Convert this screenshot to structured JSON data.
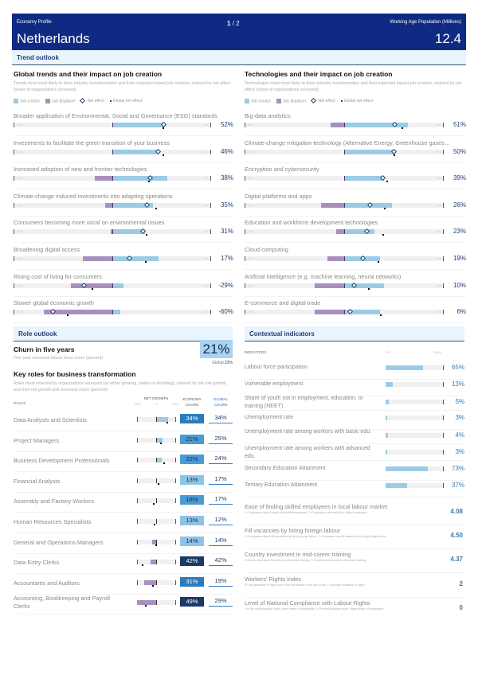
{
  "header": {
    "profile_label": "Economy Profile",
    "country": "Netherlands",
    "page_current": "1",
    "page_sep": "/ 2",
    "pop_label": "Working Age Population (Millions)",
    "pop_value": "12.4"
  },
  "colors": {
    "header": "#0f2a82",
    "creator": "#9ccbe6",
    "displacer": "#a98fbf",
    "net": "#1a3c6e"
  },
  "trend_outlook": {
    "band": "Trend outlook",
    "legend": {
      "creator": "Job creator",
      "displacer": "Job displacer",
      "net": "Net effect",
      "global": "Global net effect"
    },
    "scale": {
      "min": "-100%",
      "max": "100%"
    },
    "trends": {
      "title": "Global trends and their impact on job creation",
      "desc": "Trends most most likely to drive industry transformation and their expected impact job creation, ordered by net effect (share of organizations surveyed)",
      "items": [
        {
          "label": "Broader application of Environmental, Social and Governance (ESG) standards",
          "creator": 52,
          "displacer": 0,
          "net": 52,
          "global": 52,
          "net_label": "52%"
        },
        {
          "label": "Investments to facilitate the green transition of your business",
          "creator": 46,
          "displacer": 0,
          "net": 46,
          "global": 52,
          "net_label": "46%"
        },
        {
          "label": "Increased adoption of new and frontier technologies",
          "creator": 56,
          "displacer": -18,
          "net": 38,
          "global": 37,
          "net_label": "38%"
        },
        {
          "label": "Climate-change induced investments into adapting operations",
          "creator": 41,
          "displacer": -7,
          "net": 35,
          "global": 44,
          "net_label": "35%"
        },
        {
          "label": "Consumers becoming more vocal on environmental issues",
          "creator": 33,
          "displacer": -2,
          "net": 31,
          "global": 35,
          "net_label": "31%"
        },
        {
          "label": "Broadening digital access",
          "creator": 47,
          "displacer": -30,
          "net": 17,
          "global": 34,
          "net_label": "17%"
        },
        {
          "label": "Rising cost of living for consumers",
          "creator": 11,
          "displacer": -42,
          "net": -29,
          "global": -20,
          "net_label": "-29%"
        },
        {
          "label": "Slower global economic growth",
          "creator": 8,
          "displacer": -69,
          "net": -60,
          "global": -45,
          "net_label": "-60%"
        }
      ]
    },
    "tech": {
      "title": "Technologies and their impact on job creation",
      "desc": "Technologies most most likely to drive industry transformation and their expected impact job creation, ordered by net effect (share of organizations surveyed)",
      "items": [
        {
          "label": "Big-data analytics",
          "creator": 64,
          "displacer": -14,
          "net": 51,
          "global": 58,
          "net_label": "51%"
        },
        {
          "label": "Climate-change mitigation technology (Alternative Energy, Greenhouse gases…",
          "creator": 50,
          "displacer": 0,
          "net": 50,
          "global": 50,
          "net_label": "50%"
        },
        {
          "label": "Encryption and cybersecurity",
          "creator": 40,
          "displacer": 0,
          "net": 39,
          "global": 43,
          "net_label": "39%"
        },
        {
          "label": "Digital platforms and apps",
          "creator": 48,
          "displacer": -23,
          "net": 26,
          "global": 41,
          "net_label": "26%"
        },
        {
          "label": "Education and workforce development technologies",
          "creator": 30,
          "displacer": -8,
          "net": 23,
          "global": 39,
          "net_label": "23%"
        },
        {
          "label": "Cloud computing",
          "creator": 36,
          "displacer": -17,
          "net": 19,
          "global": 34,
          "net_label": "19%"
        },
        {
          "label": "Artificial intelligence (e.g. machine learning, neural networks)",
          "creator": 40,
          "displacer": -30,
          "net": 10,
          "global": 25,
          "net_label": "10%"
        },
        {
          "label": "E-commerce and digital trade",
          "creator": 36,
          "displacer": -30,
          "net": 6,
          "global": 37,
          "net_label": "6%"
        }
      ]
    }
  },
  "role_outlook": {
    "band": "Role outlook",
    "churn_title": "Churn in five years",
    "churn_desc": "Five-year structural labour force churn (percent)",
    "churn_value": "21%",
    "churn_global_label": "Global",
    "churn_global_value": "23%",
    "roles_title": "Key roles for business transformation",
    "roles_desc": "Roles most selected by organizations surveyed (as either growing, stable or declining), ordered by net role growth, and their net growth and structural churn (percent)",
    "columns": {
      "roles": "ROLES",
      "net_growth": "NET GROWTH",
      "ticks": [
        "-50%",
        "0",
        "50%"
      ],
      "economy_churn": "ECONOMY CHURN",
      "global_churn": "GLOBAL CHURN"
    },
    "roles": [
      {
        "name": "Data Analysts and Scientists",
        "net": 31,
        "global_net": 30,
        "churn": "34%",
        "churn_val": 34,
        "global_churn": "34%"
      },
      {
        "name": "Project Managers",
        "net": 17,
        "global_net": 12,
        "churn": "21%",
        "churn_val": 21,
        "global_churn": "25%"
      },
      {
        "name": "Business Development Professionals",
        "net": 14,
        "global_net": 20,
        "churn": "22%",
        "churn_val": 22,
        "global_churn": "24%"
      },
      {
        "name": "Financial Analysts",
        "net": 1,
        "global_net": 7,
        "churn": "13%",
        "churn_val": 13,
        "global_churn": "17%"
      },
      {
        "name": "Assembly and Factory Workers",
        "net": 0,
        "global_net": -7,
        "churn": "18%",
        "churn_val": 18,
        "global_churn": "17%"
      },
      {
        "name": "Human Resources Specialists",
        "net": 0,
        "global_net": -5,
        "churn": "13%",
        "churn_val": 13,
        "global_churn": "12%"
      },
      {
        "name": "General and Operations Managers",
        "net": -10,
        "global_net": 0,
        "churn": "14%",
        "churn_val": 14,
        "global_churn": "14%"
      },
      {
        "name": "Data Entry Clerks",
        "net": -14,
        "global_net": -36,
        "churn": "42%",
        "churn_val": 42,
        "global_churn": "42%"
      },
      {
        "name": "Accountants and Auditors",
        "net": -31,
        "global_net": -8,
        "churn": "31%",
        "churn_val": 31,
        "global_churn": "19%"
      },
      {
        "name": "Accounting, Bookkeeping and Payroll Clerks",
        "net": -50,
        "global_net": -28,
        "churn": "49%",
        "churn_val": 49,
        "global_churn": "29%"
      }
    ]
  },
  "contextual": {
    "band": "Contextual indicators",
    "header": "INDICATORS",
    "scale_min": "0%",
    "scale_max": "100%",
    "bars": [
      {
        "label": "Labour force participation",
        "value": 65,
        "display": "65%"
      },
      {
        "label": "Vulnerable employment",
        "value": 13,
        "display": "13%"
      },
      {
        "label": "Share of youth not in employment, education, or training (NEET)",
        "value": 5,
        "display": "5%"
      },
      {
        "label": "Unemployment rate",
        "value": 3,
        "display": "3%"
      },
      {
        "label": "Unemployment rate among workers with basic edu.",
        "value": 4,
        "display": "4%"
      },
      {
        "label": "Unemployment rate among workers with advanced edu.",
        "value": 3,
        "display": "3%"
      },
      {
        "label": "Secondary Education Attainment",
        "value": 73,
        "display": "73%"
      },
      {
        "label": "Tertiary Education Attainment",
        "value": 37,
        "display": "37%"
      }
    ],
    "scores": [
      {
        "label": "Ease of finding skilled employees in local labour market",
        "sub": "1=Companies cannot easily find skilled employees, 7=Companies can easily find skilled employees",
        "value": "4.08"
      },
      {
        "label": "Fill vacancies by hiring foreign labour",
        "sub": "1=Companies cannot fill vacancies by hiring foreign labour, 7=Companies can fill vacancies by hiring foreign labour",
        "value": "4.50"
      },
      {
        "label": "Country investment in mid-career training",
        "sub": "1=Government does not invest in mid-career training, 7=Government invests in mid-career training",
        "value": "4.37"
      },
      {
        "label": "Workers' Rights Index",
        "sub": "5+=No guarantee of rights due to the breakdown of the rule of law, 1=Sporadic violations of rights",
        "value": "2"
      },
      {
        "label": "Level of National Compliance with Labour Rights",
        "sub": "10=The worst possible score, lower levels of compliance, 0=The best possible score, higher levels of compliance",
        "value": "0"
      }
    ]
  }
}
